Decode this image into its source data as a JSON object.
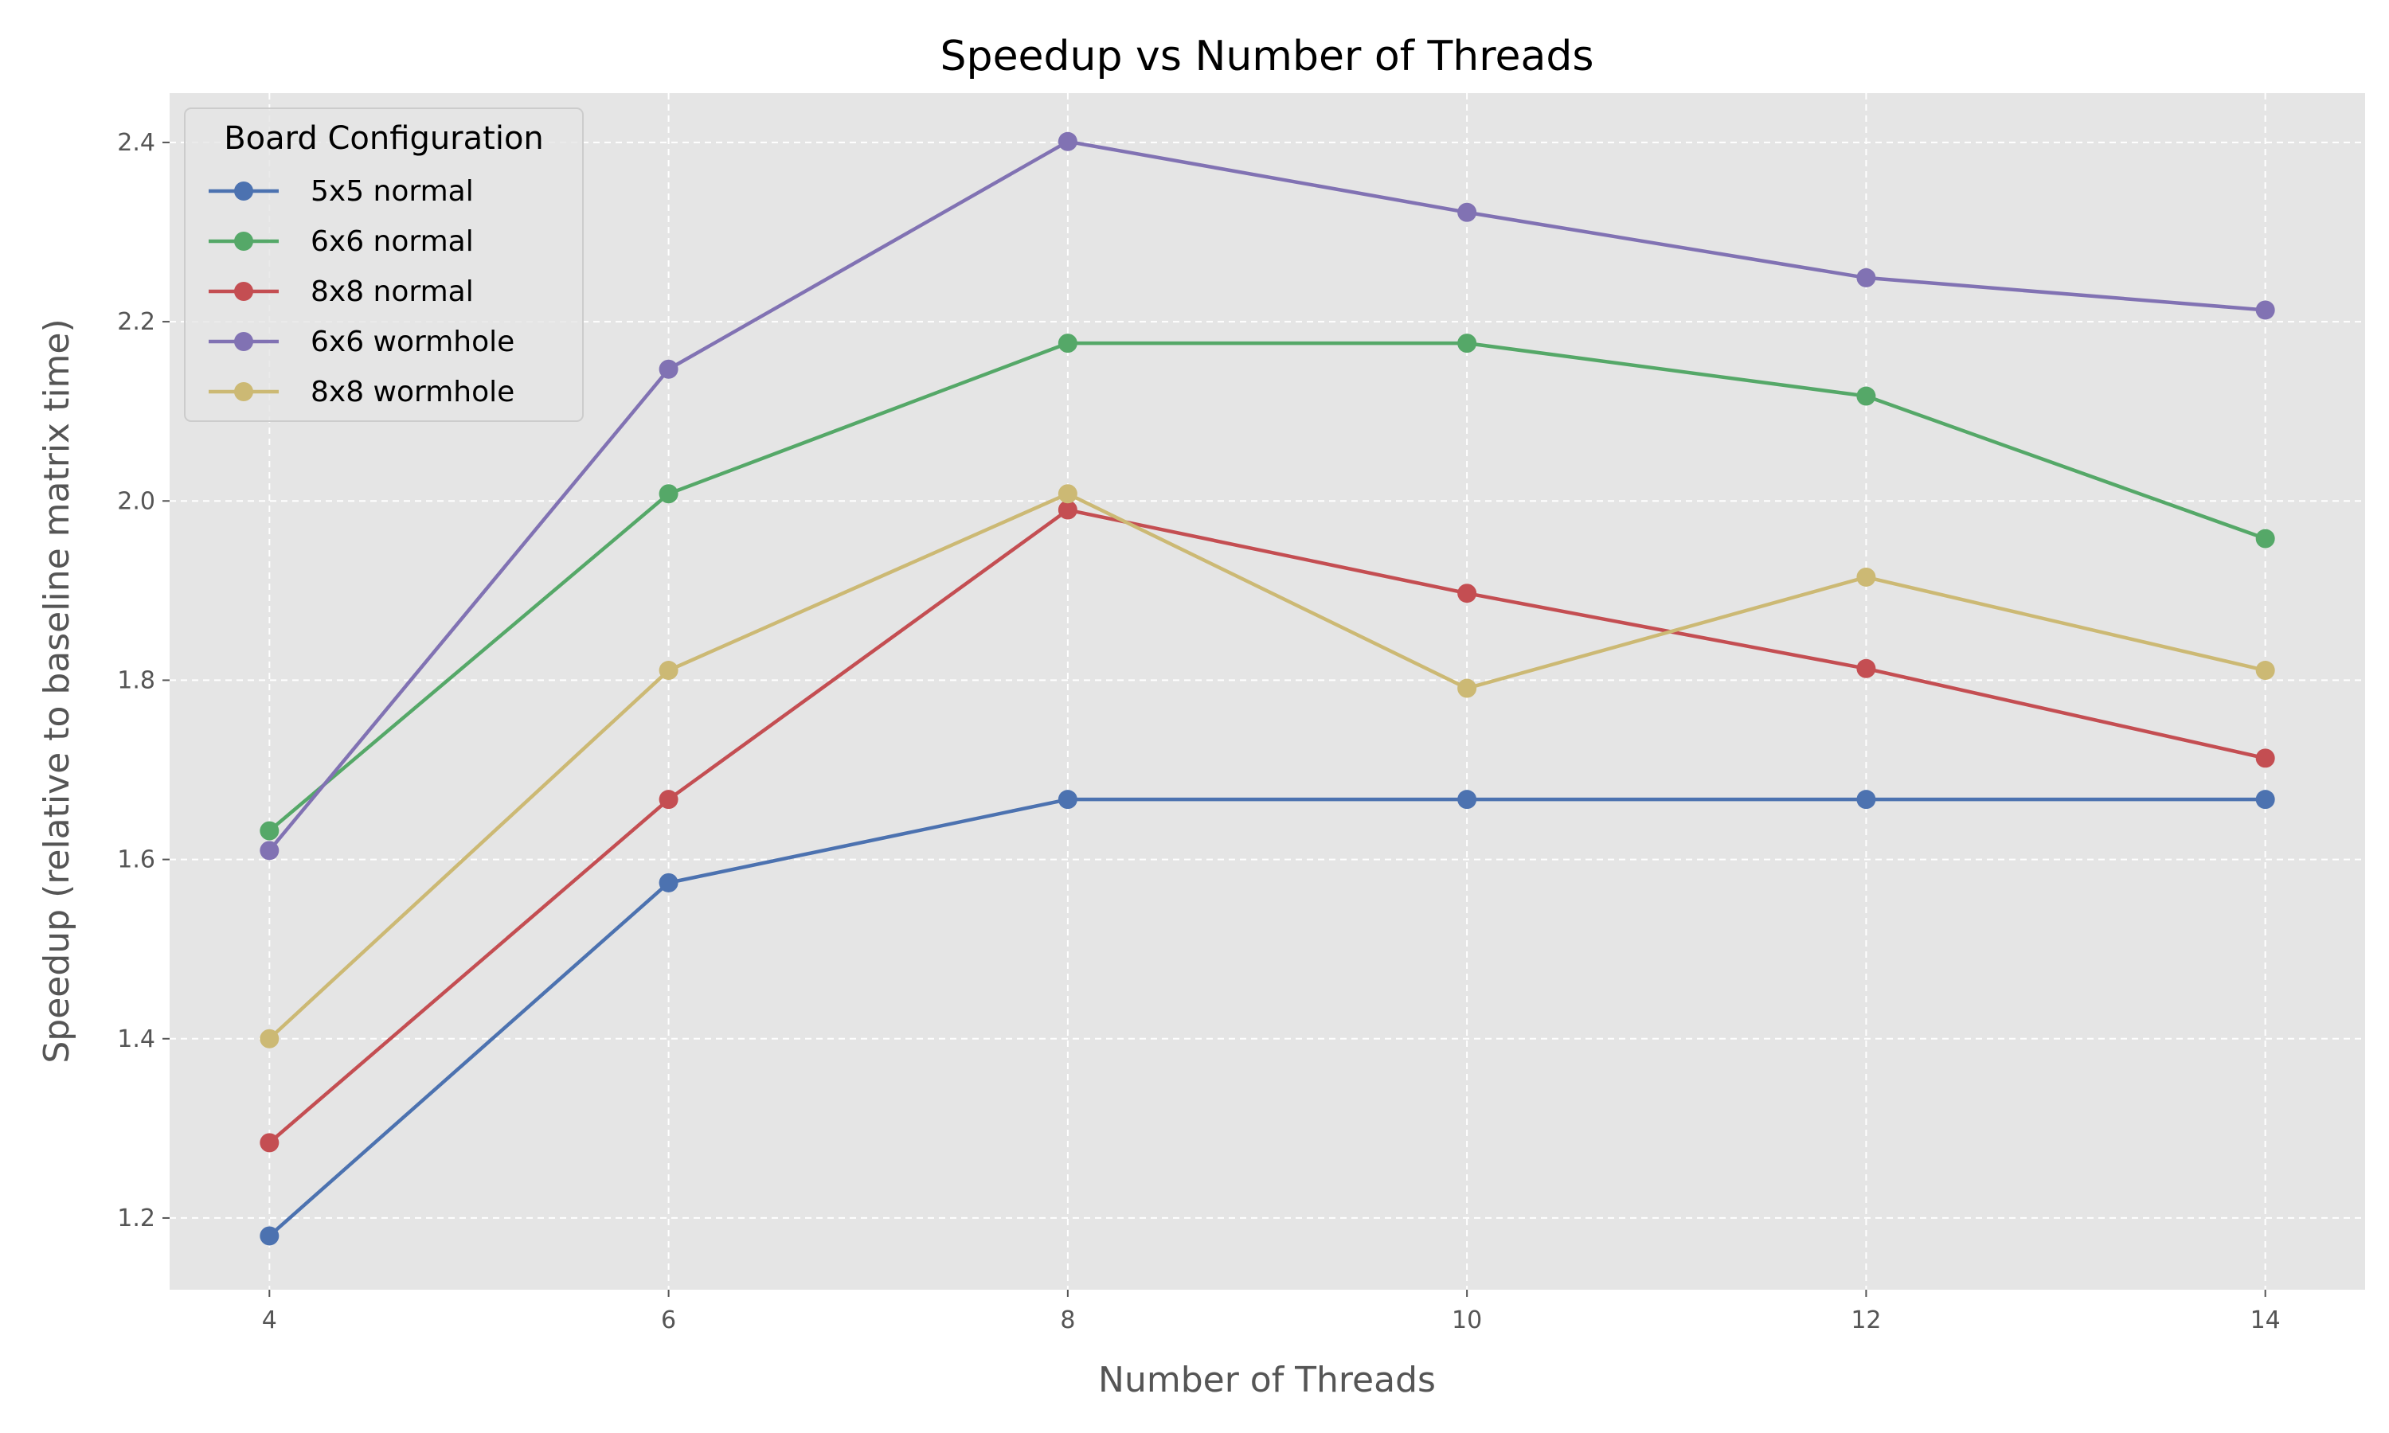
{
  "chart_data": {
    "type": "line",
    "title": "Speedup vs Number of Threads",
    "xlabel": "Number of Threads",
    "ylabel": "Speedup (relative to baseline matrix time)",
    "x": [
      4,
      6,
      8,
      10,
      12,
      14
    ],
    "xticks": [
      "4",
      "6",
      "8",
      "10",
      "12",
      "14"
    ],
    "yticks": [
      "1.2",
      "1.4",
      "1.6",
      "1.8",
      "2.0",
      "2.2",
      "2.4"
    ],
    "xlim": [
      3.5,
      14.5
    ],
    "ylim": [
      1.12,
      2.455
    ],
    "grid": true,
    "legend": {
      "title": "Board Configuration",
      "position": "top-left"
    },
    "series": [
      {
        "name": "5x5 normal",
        "color": "#4c72b0",
        "values": [
          1.18,
          1.574,
          1.667,
          1.667,
          1.667,
          1.667
        ]
      },
      {
        "name": "6x6 normal",
        "color": "#55a868",
        "values": [
          1.632,
          2.008,
          2.176,
          2.176,
          2.117,
          1.958
        ]
      },
      {
        "name": "8x8 normal",
        "color": "#c44e52",
        "values": [
          1.284,
          1.667,
          1.99,
          1.897,
          1.813,
          1.713
        ]
      },
      {
        "name": "6x6 wormhole",
        "color": "#8172b3",
        "values": [
          1.61,
          2.147,
          2.401,
          2.322,
          2.249,
          2.213
        ]
      },
      {
        "name": "8x8 wormhole",
        "color": "#ccb974",
        "values": [
          1.4,
          1.811,
          2.008,
          1.791,
          1.915,
          1.811
        ]
      }
    ]
  },
  "colors": {
    "plot_background": "#e5e5e5",
    "grid": "#ffffff"
  }
}
